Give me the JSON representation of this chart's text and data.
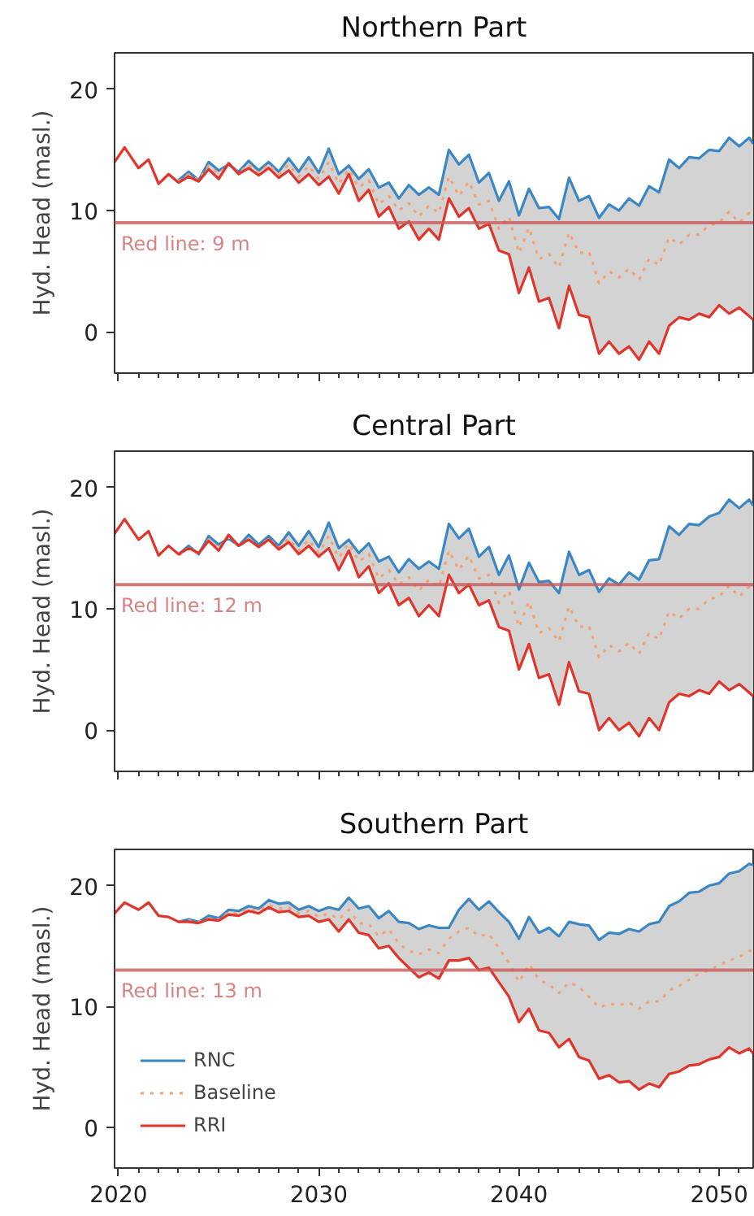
{
  "chart_data": [
    {
      "type": "line",
      "title": "Northern Part",
      "ylabel": "Hyd. Head (masl.)",
      "tick_labels": "y",
      "x": [
        2019.8,
        2020.3,
        2021,
        2021.5,
        2022,
        2022.5,
        2023,
        2023.5,
        2024,
        2024.5,
        2025,
        2025.5,
        2026,
        2026.5,
        2027,
        2027.5,
        2028,
        2028.5,
        2029,
        2029.5,
        2030,
        2030.5,
        2031,
        2031.5,
        2032,
        2032.5,
        2033,
        2033.5,
        2034,
        2034.5,
        2035,
        2035.5,
        2036,
        2036.5,
        2037,
        2037.5,
        2038,
        2038.5,
        2039,
        2039.5,
        2040,
        2040.5,
        2041,
        2041.5,
        2042,
        2042.5,
        2043,
        2043.5,
        2044,
        2044.5,
        2045,
        2045.5,
        2046,
        2046.5,
        2047,
        2047.5,
        2048,
        2048.5,
        2049,
        2049.5,
        2050,
        2050.5,
        2051,
        2051.5,
        2051.7
      ],
      "xlim": [
        2019.8,
        2051.7
      ],
      "ylim": [
        -3.4,
        23
      ],
      "yticks": [
        0,
        10,
        20
      ],
      "xticks": [
        2020,
        {
          "value": 2021,
          "label": null
        },
        {
          "value": 2022,
          "label": null
        },
        {
          "value": 2023,
          "label": null
        },
        {
          "value": 2024,
          "label": null
        },
        {
          "value": 2025,
          "label": null
        },
        {
          "value": 2026,
          "label": null
        },
        {
          "value": 2027,
          "label": null
        },
        {
          "value": 2028,
          "label": null
        },
        {
          "value": 2029,
          "label": null
        },
        2030,
        {
          "value": 2031,
          "label": null
        },
        {
          "value": 2032,
          "label": null
        },
        {
          "value": 2033,
          "label": null
        },
        {
          "value": 2034,
          "label": null
        },
        {
          "value": 2035,
          "label": null
        },
        {
          "value": 2036,
          "label": null
        },
        {
          "value": 2037,
          "label": null
        },
        {
          "value": 2038,
          "label": null
        },
        {
          "value": 2039,
          "label": null
        },
        2040,
        {
          "value": 2041,
          "label": null
        },
        {
          "value": 2042,
          "label": null
        },
        {
          "value": 2043,
          "label": null
        },
        {
          "value": 2044,
          "label": null
        },
        {
          "value": 2045,
          "label": null
        },
        {
          "value": 2046,
          "label": null
        },
        {
          "value": 2047,
          "label": null
        },
        {
          "value": 2048,
          "label": null
        },
        {
          "value": 2049,
          "label": null
        },
        2050,
        {
          "value": 2051,
          "label": null
        }
      ],
      "ref_lines": [
        {
          "axis": "y",
          "value": 9,
          "label": "Red line: 9 m",
          "color": "#c85a5a"
        }
      ],
      "series": [
        {
          "color": "#3a87c4",
          "line_style": "solid",
          "values": [
            null,
            null,
            null,
            null,
            null,
            null,
            12.5,
            13.2,
            12.5,
            14.0,
            13.3,
            13.8,
            13.2,
            14.1,
            13.3,
            14.0,
            13.2,
            14.3,
            13.2,
            14.4,
            13.1,
            15.1,
            13.0,
            13.7,
            12.6,
            13.4,
            11.9,
            12.3,
            11.0,
            12.1,
            11.3,
            11.9,
            11.3,
            15.0,
            13.8,
            14.6,
            12.3,
            13.1,
            10.8,
            12.4,
            9.6,
            11.8,
            10.2,
            10.3,
            9.3,
            12.7,
            10.8,
            11.2,
            9.4,
            10.5,
            10.0,
            11.0,
            10.4,
            12.0,
            11.5,
            14.2,
            13.5,
            14.4,
            14.3,
            15.0,
            14.9,
            16.0,
            15.3,
            16.0,
            15.5
          ]
        },
        {
          "color": "#f5a070",
          "line_style": "dotted",
          "values": [
            null,
            null,
            null,
            null,
            null,
            null,
            12.4,
            13.0,
            12.5,
            13.7,
            13.0,
            13.9,
            13.1,
            13.8,
            13.1,
            13.8,
            13.0,
            13.8,
            12.8,
            13.7,
            12.6,
            14.0,
            12.2,
            13.4,
            11.9,
            12.5,
            10.5,
            11.2,
            10.0,
            10.6,
            9.5,
            10.4,
            9.8,
            12.8,
            11.2,
            12.4,
            10.5,
            10.8,
            8.5,
            9.5,
            6.5,
            8.6,
            6.0,
            6.4,
            5.3,
            8.2,
            6.5,
            6.6,
            4.0,
            5.0,
            4.5,
            5.2,
            4.3,
            6.0,
            5.5,
            7.8,
            7.2,
            8.0,
            8.0,
            8.8,
            9.0,
            9.9,
            9.0,
            9.8,
            9.5
          ],
          "lower": [
            14.0,
            15.2,
            13.5,
            14.2,
            12.2,
            13.0,
            12.3,
            12.8,
            12.4,
            13.4,
            12.6,
            13.9,
            13.0,
            13.5,
            12.9,
            13.5,
            12.7,
            13.3,
            12.3,
            13.0,
            12.1,
            12.8,
            11.4,
            13.0,
            10.8,
            11.7,
            9.5,
            10.3,
            8.5,
            9.1,
            7.6,
            8.5,
            7.6,
            11.0,
            9.5,
            10.2,
            8.5,
            8.9,
            6.7,
            6.4,
            3.2,
            5.3,
            2.5,
            2.8,
            0.3,
            3.8,
            1.4,
            1.2,
            -1.8,
            -0.8,
            -1.8,
            -1.2,
            -2.3,
            -0.8,
            -1.8,
            0.5,
            1.2,
            1.0,
            1.5,
            1.2,
            2.2,
            1.5,
            2.0,
            1.3,
            1.0
          ],
          "upper": [
            14.0,
            15.2,
            13.5,
            14.2,
            12.2,
            13.0,
            12.5,
            13.2,
            12.5,
            14.0,
            13.3,
            13.8,
            13.2,
            14.1,
            13.3,
            14.0,
            13.2,
            14.3,
            13.2,
            14.4,
            13.1,
            15.1,
            13.0,
            13.7,
            12.6,
            13.4,
            11.9,
            12.3,
            11.0,
            12.1,
            11.3,
            11.9,
            11.3,
            15.0,
            13.8,
            14.6,
            12.3,
            13.1,
            10.8,
            12.4,
            9.6,
            11.8,
            10.2,
            10.3,
            9.3,
            12.7,
            10.8,
            11.2,
            9.4,
            10.5,
            10.0,
            11.0,
            10.4,
            12.0,
            11.5,
            14.2,
            13.5,
            14.4,
            14.3,
            15.0,
            14.9,
            16.0,
            15.3,
            16.0,
            15.5
          ]
        },
        {
          "color": "#e0352b",
          "line_style": "solid",
          "values": [
            14.0,
            15.2,
            13.5,
            14.2,
            12.2,
            13.0,
            12.3,
            12.8,
            12.4,
            13.4,
            12.6,
            13.9,
            13.0,
            13.5,
            12.9,
            13.5,
            12.7,
            13.3,
            12.3,
            13.0,
            12.1,
            12.8,
            11.4,
            13.0,
            10.8,
            11.7,
            9.5,
            10.3,
            8.5,
            9.1,
            7.6,
            8.5,
            7.6,
            11.0,
            9.5,
            10.2,
            8.5,
            8.9,
            6.7,
            6.4,
            3.2,
            5.3,
            2.5,
            2.8,
            0.3,
            3.8,
            1.4,
            1.2,
            -1.8,
            -0.8,
            -1.8,
            -1.2,
            -2.3,
            -0.8,
            -1.8,
            0.5,
            1.2,
            1.0,
            1.5,
            1.2,
            2.2,
            1.5,
            2.0,
            1.3,
            1.0
          ]
        }
      ]
    },
    {
      "type": "line",
      "title": "Central Part",
      "ylabel": "Hyd. Head (masl.)",
      "tick_labels": "y",
      "x": [
        2019.8,
        2020.3,
        2021,
        2021.5,
        2022,
        2022.5,
        2023,
        2023.5,
        2024,
        2024.5,
        2025,
        2025.5,
        2026,
        2026.5,
        2027,
        2027.5,
        2028,
        2028.5,
        2029,
        2029.5,
        2030,
        2030.5,
        2031,
        2031.5,
        2032,
        2032.5,
        2033,
        2033.5,
        2034,
        2034.5,
        2035,
        2035.5,
        2036,
        2036.5,
        2037,
        2037.5,
        2038,
        2038.5,
        2039,
        2039.5,
        2040,
        2040.5,
        2041,
        2041.5,
        2042,
        2042.5,
        2043,
        2043.5,
        2044,
        2044.5,
        2045,
        2045.5,
        2046,
        2046.5,
        2047,
        2047.5,
        2048,
        2048.5,
        2049,
        2049.5,
        2050,
        2050.5,
        2051,
        2051.5,
        2051.7
      ],
      "xlim": [
        2019.8,
        2051.7
      ],
      "ylim": [
        -3.4,
        23
      ],
      "yticks": [
        0,
        10,
        20
      ],
      "xticks": [
        2020,
        {
          "value": 2021,
          "label": null
        },
        {
          "value": 2022,
          "label": null
        },
        {
          "value": 2023,
          "label": null
        },
        {
          "value": 2024,
          "label": null
        },
        {
          "value": 2025,
          "label": null
        },
        {
          "value": 2026,
          "label": null
        },
        {
          "value": 2027,
          "label": null
        },
        {
          "value": 2028,
          "label": null
        },
        {
          "value": 2029,
          "label": null
        },
        2030,
        {
          "value": 2031,
          "label": null
        },
        {
          "value": 2032,
          "label": null
        },
        {
          "value": 2033,
          "label": null
        },
        {
          "value": 2034,
          "label": null
        },
        {
          "value": 2035,
          "label": null
        },
        {
          "value": 2036,
          "label": null
        },
        {
          "value": 2037,
          "label": null
        },
        {
          "value": 2038,
          "label": null
        },
        {
          "value": 2039,
          "label": null
        },
        2040,
        {
          "value": 2041,
          "label": null
        },
        {
          "value": 2042,
          "label": null
        },
        {
          "value": 2043,
          "label": null
        },
        {
          "value": 2044,
          "label": null
        },
        {
          "value": 2045,
          "label": null
        },
        {
          "value": 2046,
          "label": null
        },
        {
          "value": 2047,
          "label": null
        },
        {
          "value": 2048,
          "label": null
        },
        {
          "value": 2049,
          "label": null
        },
        2050,
        {
          "value": 2051,
          "label": null
        }
      ],
      "ref_lines": [
        {
          "axis": "y",
          "value": 12,
          "label": "Red line: 12 m",
          "color": "#c85a5a"
        }
      ],
      "series": [
        {
          "color": "#3a87c4",
          "line_style": "solid",
          "values": [
            null,
            null,
            null,
            null,
            null,
            null,
            14.5,
            15.2,
            14.5,
            16.0,
            15.3,
            15.8,
            15.2,
            16.1,
            15.3,
            16.0,
            15.2,
            16.3,
            15.2,
            16.4,
            15.1,
            17.1,
            15.0,
            15.7,
            14.6,
            15.4,
            13.9,
            14.3,
            13.0,
            14.1,
            13.3,
            13.9,
            13.3,
            17.0,
            15.8,
            16.6,
            14.3,
            15.1,
            12.8,
            14.4,
            11.6,
            13.8,
            12.2,
            12.3,
            11.3,
            14.7,
            12.8,
            13.2,
            11.4,
            12.5,
            12.0,
            13.0,
            12.4,
            14.0,
            14.1,
            16.8,
            16.1,
            17.0,
            16.9,
            17.6,
            17.9,
            19.0,
            18.3,
            19.0,
            18.5
          ]
        },
        {
          "color": "#f5a070",
          "line_style": "dotted",
          "values": [
            null,
            null,
            null,
            null,
            null,
            null,
            14.4,
            15.0,
            14.5,
            15.7,
            15.0,
            15.9,
            15.1,
            15.8,
            15.1,
            15.8,
            15.0,
            15.8,
            14.8,
            15.7,
            14.6,
            16.0,
            14.2,
            15.4,
            13.9,
            14.5,
            12.5,
            13.2,
            12.0,
            12.6,
            11.5,
            12.4,
            11.8,
            14.8,
            13.2,
            14.4,
            12.5,
            12.8,
            10.5,
            11.5,
            8.5,
            10.6,
            8.0,
            8.4,
            7.3,
            10.2,
            8.5,
            8.6,
            6.0,
            7.0,
            6.5,
            7.2,
            6.3,
            8.0,
            7.5,
            9.8,
            9.2,
            10.0,
            10.0,
            10.8,
            11.0,
            11.9,
            11.0,
            11.8,
            11.5
          ],
          "lower": [
            16.2,
            17.4,
            15.7,
            16.4,
            14.4,
            15.2,
            14.5,
            15.0,
            14.6,
            15.6,
            14.8,
            16.1,
            15.2,
            15.7,
            15.1,
            15.7,
            14.9,
            15.5,
            14.5,
            15.2,
            14.3,
            15.0,
            13.2,
            14.8,
            12.6,
            13.5,
            11.3,
            12.1,
            10.3,
            10.9,
            9.4,
            10.3,
            9.4,
            12.8,
            11.3,
            12.0,
            10.3,
            10.7,
            8.5,
            8.2,
            5.0,
            7.1,
            4.3,
            4.6,
            2.1,
            5.6,
            3.2,
            3.0,
            0.0,
            1.0,
            0.0,
            0.6,
            -0.5,
            1.0,
            0.0,
            2.3,
            3.0,
            2.8,
            3.3,
            3.0,
            4.0,
            3.3,
            3.8,
            3.1,
            2.8
          ],
          "upper": [
            16.2,
            17.4,
            15.7,
            16.4,
            14.4,
            15.2,
            14.5,
            15.2,
            14.5,
            16.0,
            15.3,
            15.8,
            15.2,
            16.1,
            15.3,
            16.0,
            15.2,
            16.3,
            15.2,
            16.4,
            15.1,
            17.1,
            15.0,
            15.7,
            14.6,
            15.4,
            13.9,
            14.3,
            13.0,
            14.1,
            13.3,
            13.9,
            13.3,
            17.0,
            15.8,
            16.6,
            14.3,
            15.1,
            12.8,
            14.4,
            11.6,
            13.8,
            12.2,
            12.3,
            11.3,
            14.7,
            12.8,
            13.2,
            11.4,
            12.5,
            12.0,
            13.0,
            12.4,
            14.0,
            14.1,
            16.8,
            16.1,
            17.0,
            16.9,
            17.6,
            17.9,
            19.0,
            18.3,
            19.0,
            18.5
          ]
        },
        {
          "color": "#e0352b",
          "line_style": "solid",
          "values": [
            16.2,
            17.4,
            15.7,
            16.4,
            14.4,
            15.2,
            14.5,
            15.0,
            14.6,
            15.6,
            14.8,
            16.1,
            15.2,
            15.7,
            15.1,
            15.7,
            14.9,
            15.5,
            14.5,
            15.2,
            14.3,
            15.0,
            13.2,
            14.8,
            12.6,
            13.5,
            11.3,
            12.1,
            10.3,
            10.9,
            9.4,
            10.3,
            9.4,
            12.8,
            11.3,
            12.0,
            10.3,
            10.7,
            8.5,
            8.2,
            5.0,
            7.1,
            4.3,
            4.6,
            2.1,
            5.6,
            3.2,
            3.0,
            0.0,
            1.0,
            0.0,
            0.6,
            -0.5,
            1.0,
            0.0,
            2.3,
            3.0,
            2.8,
            3.3,
            3.0,
            4.0,
            3.3,
            3.8,
            3.1,
            2.8
          ]
        }
      ]
    },
    {
      "type": "line",
      "title": "Southern Part",
      "ylabel": "Hyd. Head (masl.)",
      "legend": "bottom left",
      "x": [
        2019.8,
        2020.3,
        2021,
        2021.5,
        2022,
        2022.5,
        2023,
        2023.5,
        2024,
        2024.5,
        2025,
        2025.5,
        2026,
        2026.5,
        2027,
        2027.5,
        2028,
        2028.5,
        2029,
        2029.5,
        2030,
        2030.5,
        2031,
        2031.5,
        2032,
        2032.5,
        2033,
        2033.5,
        2034,
        2034.5,
        2035,
        2035.5,
        2036,
        2036.5,
        2037,
        2037.5,
        2038,
        2038.5,
        2039,
        2039.5,
        2040,
        2040.5,
        2041,
        2041.5,
        2042,
        2042.5,
        2043,
        2043.5,
        2044,
        2044.5,
        2045,
        2045.5,
        2046,
        2046.5,
        2047,
        2047.5,
        2048,
        2048.5,
        2049,
        2049.5,
        2050,
        2050.5,
        2051,
        2051.5,
        2051.7
      ],
      "xlim": [
        2019.8,
        2051.7
      ],
      "ylim": [
        -3.4,
        23
      ],
      "yticks": [
        0,
        10,
        20
      ],
      "xticks": [
        2020,
        {
          "value": 2021,
          "label": null
        },
        {
          "value": 2022,
          "label": null
        },
        {
          "value": 2023,
          "label": null
        },
        {
          "value": 2024,
          "label": null
        },
        {
          "value": 2025,
          "label": null
        },
        {
          "value": 2026,
          "label": null
        },
        {
          "value": 2027,
          "label": null
        },
        {
          "value": 2028,
          "label": null
        },
        {
          "value": 2029,
          "label": null
        },
        2030,
        {
          "value": 2031,
          "label": null
        },
        {
          "value": 2032,
          "label": null
        },
        {
          "value": 2033,
          "label": null
        },
        {
          "value": 2034,
          "label": null
        },
        {
          "value": 2035,
          "label": null
        },
        {
          "value": 2036,
          "label": null
        },
        {
          "value": 2037,
          "label": null
        },
        {
          "value": 2038,
          "label": null
        },
        {
          "value": 2039,
          "label": null
        },
        2040,
        {
          "value": 2041,
          "label": null
        },
        {
          "value": 2042,
          "label": null
        },
        {
          "value": 2043,
          "label": null
        },
        {
          "value": 2044,
          "label": null
        },
        {
          "value": 2045,
          "label": null
        },
        {
          "value": 2046,
          "label": null
        },
        {
          "value": 2047,
          "label": null
        },
        {
          "value": 2048,
          "label": null
        },
        {
          "value": 2049,
          "label": null
        },
        2050,
        {
          "value": 2051,
          "label": null
        }
      ],
      "ref_lines": [
        {
          "axis": "y",
          "value": 13,
          "label": "Red line: 13 m",
          "color": "#c85a5a"
        }
      ],
      "series": [
        {
          "name": "RNC",
          "color": "#3a87c4",
          "line_style": "solid",
          "values": [
            null,
            null,
            null,
            null,
            null,
            null,
            17.0,
            17.2,
            17.0,
            17.5,
            17.3,
            18.0,
            17.9,
            18.3,
            18.1,
            18.8,
            18.5,
            18.6,
            18.0,
            18.3,
            17.9,
            18.2,
            18.0,
            19.0,
            18.1,
            18.3,
            17.3,
            17.9,
            17.0,
            16.9,
            16.4,
            16.7,
            16.5,
            16.5,
            18.0,
            18.9,
            18.0,
            18.7,
            17.8,
            17.0,
            15.6,
            17.4,
            16.1,
            16.5,
            15.8,
            17.0,
            16.8,
            16.7,
            15.5,
            16.1,
            16.0,
            16.4,
            16.2,
            16.8,
            17.0,
            18.3,
            18.7,
            19.4,
            19.5,
            20.0,
            20.2,
            21.0,
            21.2,
            21.8,
            21.7
          ]
        },
        {
          "name": "Baseline",
          "color": "#f5a070",
          "line_style": "dotted",
          "values": [
            null,
            null,
            null,
            null,
            null,
            null,
            17.0,
            17.1,
            17.0,
            17.3,
            17.2,
            17.8,
            17.7,
            18.1,
            17.9,
            18.4,
            18.1,
            18.2,
            17.7,
            17.9,
            17.4,
            17.7,
            17.2,
            18.0,
            16.9,
            16.8,
            15.8,
            16.4,
            15.2,
            14.6,
            14.3,
            14.7,
            14.4,
            15.6,
            16.2,
            16.5,
            15.8,
            16.0,
            14.8,
            13.6,
            12.0,
            13.5,
            12.2,
            11.8,
            11.1,
            12.0,
            11.6,
            10.8,
            9.9,
            10.2,
            10.1,
            10.3,
            9.8,
            10.4,
            10.4,
            11.3,
            11.7,
            12.2,
            12.7,
            13.0,
            13.4,
            13.8,
            14.1,
            14.6,
            14.6
          ],
          "lower": [
            17.7,
            18.6,
            18.0,
            18.6,
            17.5,
            17.4,
            17.0,
            17.0,
            16.9,
            17.2,
            17.1,
            17.6,
            17.5,
            17.9,
            17.7,
            18.2,
            17.8,
            17.9,
            17.4,
            17.5,
            17.0,
            17.2,
            16.2,
            17.2,
            16.1,
            15.9,
            14.8,
            15.0,
            14.0,
            13.2,
            12.4,
            12.8,
            12.3,
            13.8,
            13.8,
            14.0,
            13.0,
            13.2,
            12.0,
            10.8,
            8.7,
            9.8,
            8.0,
            7.8,
            6.6,
            7.3,
            5.8,
            5.5,
            4.0,
            4.3,
            3.7,
            3.8,
            3.1,
            3.6,
            3.3,
            4.4,
            4.6,
            5.1,
            5.2,
            5.6,
            5.8,
            6.6,
            6.1,
            6.5,
            6.1
          ],
          "upper": [
            17.7,
            18.6,
            18.0,
            18.6,
            17.5,
            17.4,
            17.0,
            17.2,
            17.0,
            17.5,
            17.3,
            18.0,
            17.9,
            18.3,
            18.1,
            18.8,
            18.5,
            18.6,
            18.0,
            18.3,
            17.9,
            18.2,
            18.0,
            19.0,
            18.1,
            18.3,
            17.3,
            17.9,
            17.0,
            16.9,
            16.4,
            16.7,
            16.5,
            16.5,
            18.0,
            18.9,
            18.0,
            18.7,
            17.8,
            17.0,
            15.6,
            17.4,
            16.1,
            16.5,
            15.8,
            17.0,
            16.8,
            16.7,
            15.5,
            16.1,
            16.0,
            16.4,
            16.2,
            16.8,
            17.0,
            18.3,
            18.7,
            19.4,
            19.5,
            20.0,
            20.2,
            21.0,
            21.2,
            21.8,
            21.7
          ]
        },
        {
          "name": "RRI",
          "color": "#e0352b",
          "line_style": "solid",
          "values": [
            17.7,
            18.6,
            18.0,
            18.6,
            17.5,
            17.4,
            17.0,
            17.0,
            16.9,
            17.2,
            17.1,
            17.6,
            17.5,
            17.9,
            17.7,
            18.2,
            17.8,
            17.9,
            17.4,
            17.5,
            17.0,
            17.2,
            16.2,
            17.2,
            16.1,
            15.9,
            14.8,
            15.0,
            14.0,
            13.2,
            12.4,
            12.8,
            12.3,
            13.8,
            13.8,
            14.0,
            13.0,
            13.2,
            12.0,
            10.8,
            8.7,
            9.8,
            8.0,
            7.8,
            6.6,
            7.3,
            5.8,
            5.5,
            4.0,
            4.3,
            3.7,
            3.8,
            3.1,
            3.6,
            3.3,
            4.4,
            4.6,
            5.1,
            5.2,
            5.6,
            5.8,
            6.6,
            6.1,
            6.5,
            6.1
          ]
        }
      ]
    }
  ]
}
